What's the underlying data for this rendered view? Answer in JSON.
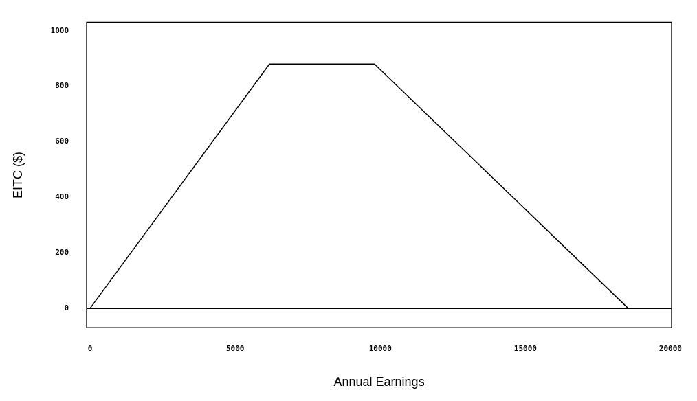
{
  "chart_data": {
    "type": "line",
    "xlabel": "Annual Earnings",
    "ylabel": "EITC ($)",
    "x": [
      0,
      6180,
      9800,
      18540,
      20000
    ],
    "series": [
      {
        "color": "#000000",
        "values": [
          0,
          880,
          880,
          0,
          0
        ]
      }
    ],
    "xlim": [
      -120,
      20040
    ],
    "ylim": [
      -70,
      1030
    ],
    "xticks": [
      0,
      5000,
      10000,
      15000,
      20000
    ],
    "yticks": [
      0,
      200,
      400,
      600,
      800,
      1000
    ],
    "ref_lines": [
      {
        "axis": "y",
        "value": 0,
        "color": "#000000"
      }
    ],
    "grid": false,
    "legend": false,
    "marker": "none",
    "line_style": "solid"
  }
}
